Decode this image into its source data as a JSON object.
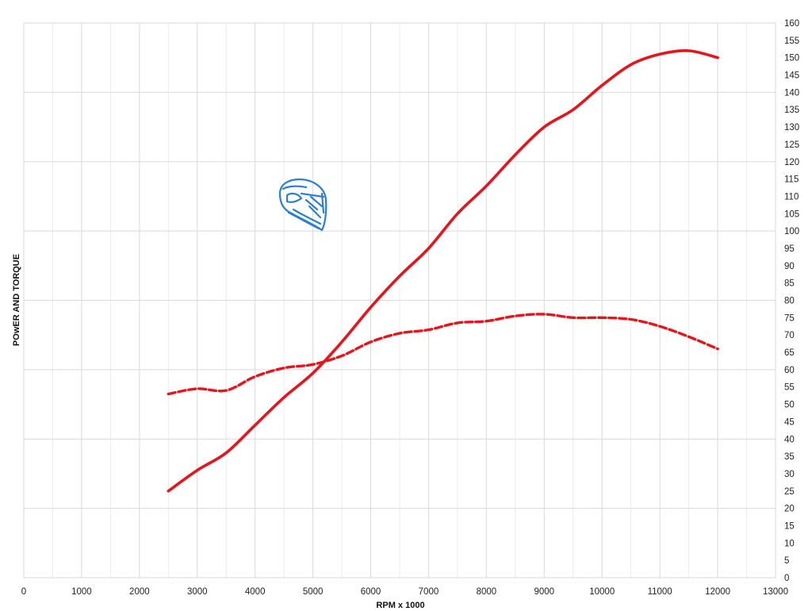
{
  "chart_data": {
    "type": "line",
    "title": "",
    "xlabel": "RPM x 1000",
    "ylabel": "POwER AND TORQUE",
    "xlim": [
      0,
      13000
    ],
    "ylim": [
      0,
      160
    ],
    "x_ticks": [
      0,
      1000,
      2000,
      3000,
      4000,
      5000,
      6000,
      7000,
      8000,
      9000,
      10000,
      11000,
      12000,
      13000
    ],
    "y_ticks": [
      0,
      5,
      10,
      15,
      20,
      25,
      30,
      35,
      40,
      45,
      50,
      55,
      60,
      65,
      70,
      75,
      80,
      85,
      90,
      95,
      100,
      105,
      110,
      115,
      120,
      125,
      130,
      135,
      140,
      145,
      150,
      155,
      160
    ],
    "y_axis_position": "right",
    "grid": true,
    "legend": "none",
    "series": [
      {
        "style": "solid",
        "color": "#e8141b",
        "x": [
          2500,
          3000,
          3500,
          4000,
          4500,
          5000,
          5500,
          6000,
          6500,
          7000,
          7500,
          8000,
          8500,
          9000,
          9500,
          10000,
          10500,
          11000,
          11500,
          12000
        ],
        "y": [
          25,
          31,
          36,
          44,
          52,
          59,
          68,
          78,
          87,
          95,
          105,
          113,
          122,
          130,
          135,
          142,
          148,
          151,
          152,
          150
        ]
      },
      {
        "style": "dashed",
        "color": "#e8141b",
        "x": [
          2500,
          3000,
          3500,
          4000,
          4500,
          5000,
          5500,
          6000,
          6500,
          7000,
          7500,
          8000,
          8500,
          9000,
          9500,
          10000,
          10500,
          11000,
          11500,
          12000
        ],
        "y": [
          53,
          54.5,
          54,
          58,
          60.5,
          61.5,
          64,
          68,
          70.5,
          71.5,
          73.5,
          74,
          75.5,
          76,
          75,
          75,
          74.5,
          72.5,
          69.5,
          66
        ]
      }
    ]
  },
  "logo": {
    "name": "helmet-logo-icon",
    "color": "#2a7fd4"
  }
}
